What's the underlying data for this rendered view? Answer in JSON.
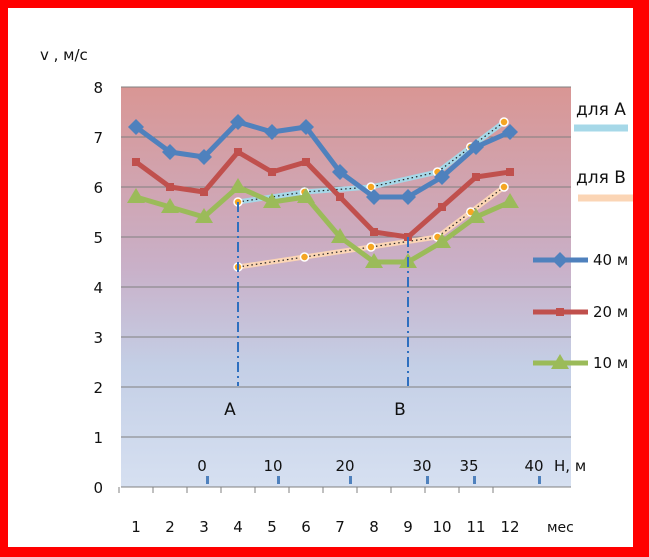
{
  "chart_data": {
    "type": "line",
    "ylabel": "v , м/с",
    "ylim": [
      0,
      8
    ],
    "y_ticks": [
      "0",
      "1",
      "2",
      "3",
      "4",
      "5",
      "6",
      "7",
      "8"
    ],
    "x_unit": "мес",
    "categories": [
      "1",
      "2",
      "3",
      "4",
      "5",
      "6",
      "7",
      "8",
      "9",
      "10",
      "11",
      "12"
    ],
    "h_axis_label": "Н, м",
    "h_ticks": [
      "0",
      "10",
      "20",
      "30",
      "35",
      "40"
    ],
    "grid": true,
    "series": [
      {
        "name": "40 м",
        "color": "#4f81bd",
        "marker": "diamond",
        "values": [
          7.2,
          6.7,
          6.6,
          7.3,
          7.1,
          7.2,
          6.3,
          5.8,
          5.8,
          6.2,
          6.8,
          7.1
        ]
      },
      {
        "name": "20 м",
        "color": "#c0504d",
        "marker": "square",
        "values": [
          6.5,
          6.0,
          5.9,
          6.7,
          6.3,
          6.5,
          5.8,
          5.1,
          5.0,
          5.6,
          6.2,
          6.3
        ]
      },
      {
        "name": "10 м",
        "color": "#9bbb59",
        "marker": "triangle",
        "values": [
          5.8,
          5.6,
          5.4,
          6.0,
          5.7,
          5.8,
          5.0,
          4.5,
          4.5,
          4.9,
          5.4,
          5.7
        ]
      }
    ],
    "profiles": [
      {
        "name": "для А",
        "color": "#a6d8e8",
        "h": [
          0,
          10,
          20,
          30,
          35,
          40
        ],
        "v": [
          5.7,
          5.9,
          6.0,
          6.3,
          6.8,
          7.3
        ]
      },
      {
        "name": "для В",
        "color": "#fbd5b5",
        "h": [
          0,
          10,
          20,
          30,
          35,
          40
        ],
        "v": [
          4.4,
          4.6,
          4.8,
          5.0,
          5.5,
          6.0
        ]
      }
    ],
    "markers": [
      {
        "label": "А",
        "month": 4,
        "v": 5.7
      },
      {
        "label": "В",
        "month": 9,
        "v": 5.0
      }
    ]
  }
}
